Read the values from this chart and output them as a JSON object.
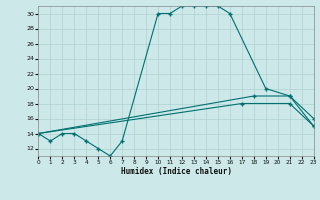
{
  "xlabel": "Humidex (Indice chaleur)",
  "xlim": [
    0,
    23
  ],
  "ylim": [
    11,
    31
  ],
  "yticks": [
    12,
    14,
    16,
    18,
    20,
    22,
    24,
    26,
    28,
    30
  ],
  "xticks": [
    0,
    1,
    2,
    3,
    4,
    5,
    6,
    7,
    8,
    9,
    10,
    11,
    12,
    13,
    14,
    15,
    16,
    17,
    18,
    19,
    20,
    21,
    22,
    23
  ],
  "xticklabels": [
    "0",
    "1",
    "2",
    "3",
    "4",
    "5",
    "6",
    "7",
    "8",
    "9",
    "10",
    "11",
    "12",
    "13",
    "14",
    "15",
    "16",
    "17",
    "18",
    "19",
    "20",
    "21",
    "22",
    "23"
  ],
  "bg_color": "#cce8e8",
  "grid_color": "#b0d0d0",
  "line_color": "#007070",
  "curve1_x": [
    0,
    1,
    2,
    3,
    4,
    5,
    6,
    7,
    10,
    11,
    12,
    13,
    14,
    15,
    16,
    19,
    21,
    23
  ],
  "curve1_y": [
    14,
    13,
    14,
    14,
    13,
    12,
    11,
    13,
    30,
    30,
    31,
    31,
    31,
    31,
    30,
    20,
    19,
    16
  ],
  "curve2_x": [
    0,
    18,
    21,
    23
  ],
  "curve2_y": [
    14,
    19,
    19,
    15
  ],
  "curve3_x": [
    0,
    17,
    21,
    23
  ],
  "curve3_y": [
    14,
    18,
    18,
    15
  ]
}
